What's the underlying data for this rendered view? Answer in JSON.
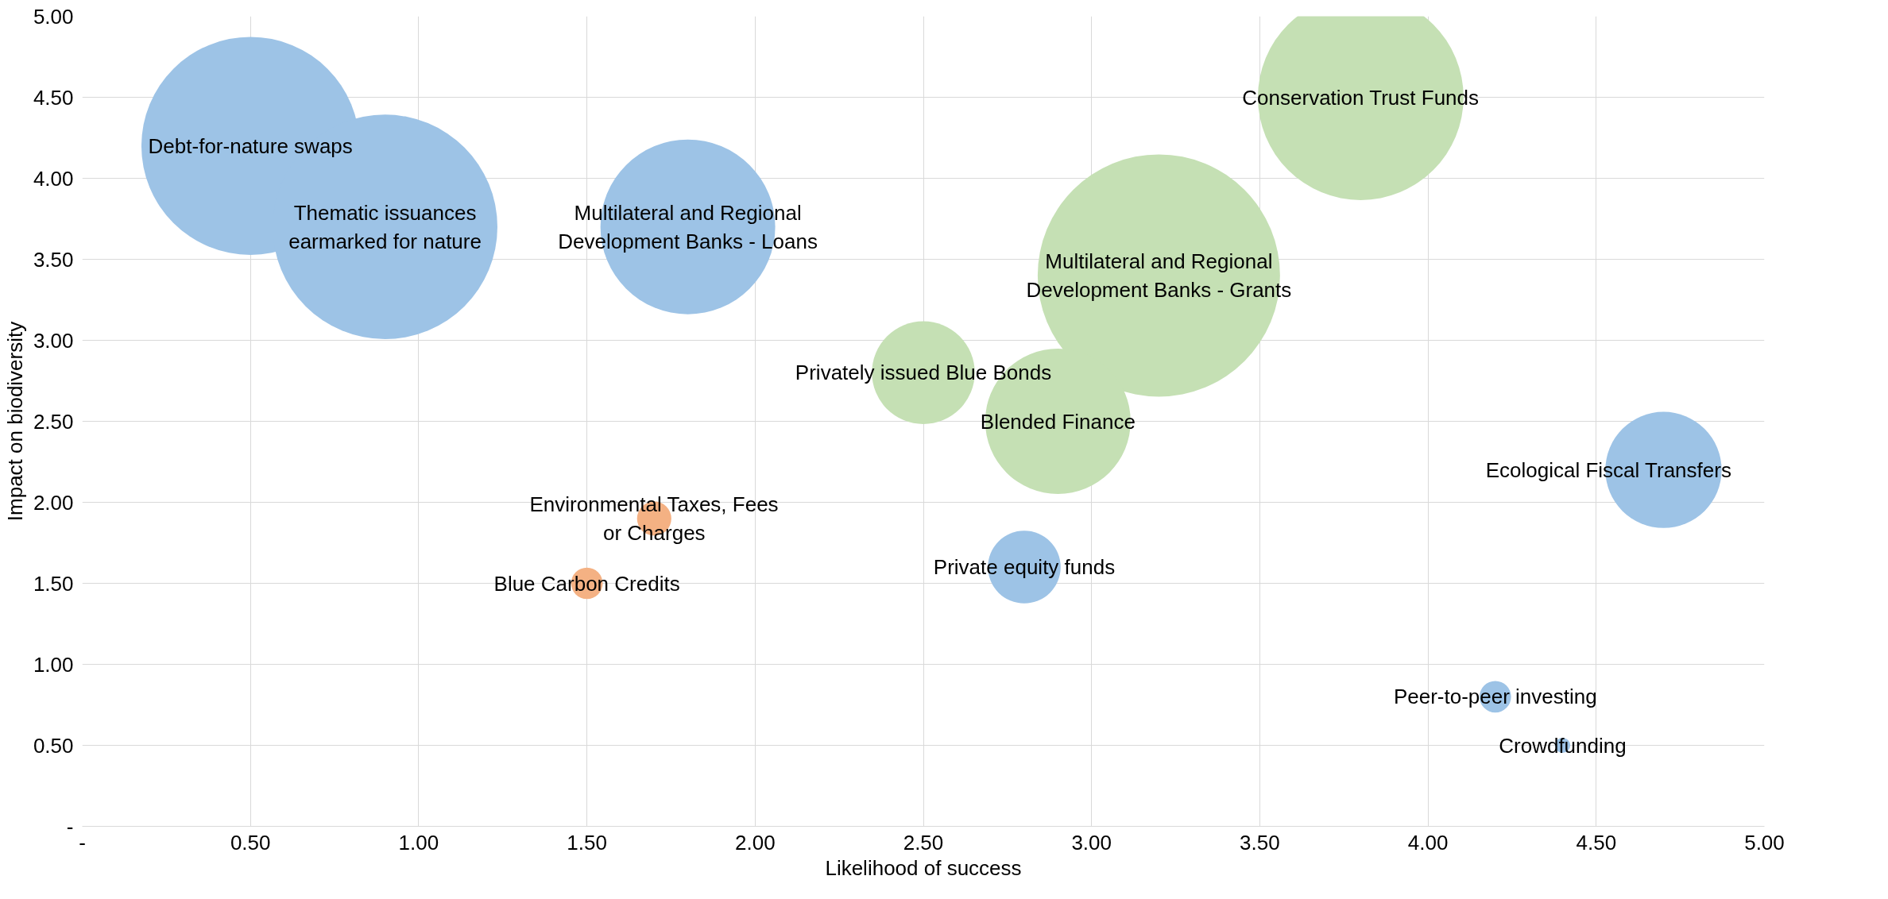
{
  "chart_data": {
    "type": "bubble",
    "xlabel": "Likelihood of success",
    "ylabel": "Impact on biodiversity",
    "series": [
      {
        "color": "#9dc3e6",
        "x": [
          0.5,
          0.9,
          1.8,
          4.7,
          2.8,
          4.2,
          4.4
        ],
        "values": [
          4.2,
          3.7,
          3.7,
          2.2,
          1.6,
          0.8,
          0.5
        ],
        "sizes": [
          0.81,
          0.86,
          0.52,
          0.23,
          0.09,
          0.017,
          0.004
        ]
      },
      {
        "color": "#c5e0b4",
        "x": [
          3.8,
          3.2,
          2.5,
          2.9
        ],
        "values": [
          4.5,
          3.4,
          2.8,
          2.5
        ],
        "sizes": [
          0.72,
          1,
          0.18,
          0.36
        ]
      },
      {
        "color": "#f4b183",
        "x": [
          1.7,
          1.5
        ],
        "values": [
          1.9,
          1.5
        ],
        "sizes": [
          0.02,
          0.017
        ]
      }
    ],
    "xlim": [
      0,
      5
    ],
    "ylim": [
      0,
      5
    ],
    "xticks": [
      {
        "value": 0,
        "label": "-"
      },
      {
        "value": 0.5,
        "label": "0.50"
      },
      {
        "value": 1,
        "label": "1.00"
      },
      {
        "value": 1.5,
        "label": "1.50"
      },
      {
        "value": 2,
        "label": "2.00"
      },
      {
        "value": 2.5,
        "label": "2.50"
      },
      {
        "value": 3,
        "label": "3.00"
      },
      {
        "value": 3.5,
        "label": "3.50"
      },
      {
        "value": 4,
        "label": "4.00"
      },
      {
        "value": 4.5,
        "label": "4.50"
      },
      {
        "value": 5,
        "label": "5.00"
      }
    ],
    "yticks": [
      {
        "value": 0,
        "label": "-"
      },
      {
        "value": 0.5,
        "label": "0.50"
      },
      {
        "value": 1,
        "label": "1.00"
      },
      {
        "value": 1.5,
        "label": "1.50"
      },
      {
        "value": 2,
        "label": "2.00"
      },
      {
        "value": 2.5,
        "label": "2.50"
      },
      {
        "value": 3,
        "label": "3.00"
      },
      {
        "value": 3.5,
        "label": "3.50"
      },
      {
        "value": 4,
        "label": "4.00"
      },
      {
        "value": 4.5,
        "label": "4.50"
      },
      {
        "value": 5,
        "label": "5.00"
      }
    ],
    "grid": true,
    "annotations": [
      {
        "text": "Debt-for-nature swaps",
        "x": 0.5,
        "y": 4.2
      },
      {
        "text": "Thematic issuances\nearmarked for nature",
        "x": 0.9,
        "y": 3.7
      },
      {
        "text": "Multilateral and Regional\nDevelopment Banks - Loans",
        "x": 1.8,
        "y": 3.7
      },
      {
        "text": "Ecological Fiscal Transfers",
        "x": 4.7,
        "y": 2.2
      },
      {
        "text": "Private equity funds",
        "x": 2.8,
        "y": 1.6
      },
      {
        "text": "Peer-to-peer investing",
        "x": 4.2,
        "y": 0.8
      },
      {
        "text": "Crowdfunding",
        "x": 4.4,
        "y": 0.5
      },
      {
        "text": "Conservation Trust Funds",
        "x": 3.8,
        "y": 4.5
      },
      {
        "text": "Multilateral and Regional\nDevelopment Banks - Grants",
        "x": 3.2,
        "y": 3.4
      },
      {
        "text": "Privately issued Blue Bonds",
        "x": 2.5,
        "y": 2.8
      },
      {
        "text": "Blended Finance",
        "x": 2.9,
        "y": 2.5
      },
      {
        "text": "Environmental Taxes, Fees\nor Charges",
        "x": 1.7,
        "y": 1.9
      },
      {
        "text": "Blue Carbon Credits",
        "x": 1.5,
        "y": 1.5
      }
    ]
  }
}
